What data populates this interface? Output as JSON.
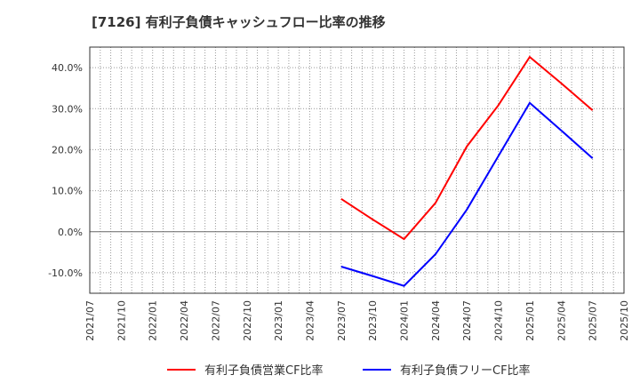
{
  "chart_data": {
    "type": "line",
    "title": "[7126]  有利子負債キャッシュフロー比率の推移",
    "x_ticks": [
      "2021/07",
      "2021/10",
      "2022/01",
      "2022/04",
      "2022/07",
      "2022/10",
      "2023/01",
      "2023/04",
      "2023/07",
      "2023/10",
      "2024/01",
      "2024/04",
      "2024/07",
      "2024/10",
      "2025/01",
      "2025/04",
      "2025/07",
      "2025/10"
    ],
    "y_ticks": [
      -10,
      0,
      10,
      20,
      30,
      40
    ],
    "y_tick_labels": [
      "-10.0%",
      "0.0%",
      "10.0%",
      "20.0%",
      "30.0%",
      "40.0%"
    ],
    "ylim": [
      -15,
      45
    ],
    "grid": true,
    "legend_position": "bottom",
    "x": [
      "2023/07",
      "2023/10",
      "2024/01",
      "2024/04",
      "2024/07",
      "2024/10",
      "2025/01",
      "2025/04",
      "2025/07"
    ],
    "series": [
      {
        "name": "有利子負債営業CF比率",
        "color": "#ff0000",
        "values": [
          8.0,
          3.0,
          -1.8,
          7.0,
          20.8,
          30.8,
          42.6,
          36.2,
          29.6
        ]
      },
      {
        "name": "有利子負債フリーCF比率",
        "color": "#0000ff",
        "values": [
          -8.5,
          -10.8,
          -13.2,
          -5.5,
          5.4,
          18.4,
          31.4,
          24.7,
          17.9
        ]
      }
    ]
  }
}
